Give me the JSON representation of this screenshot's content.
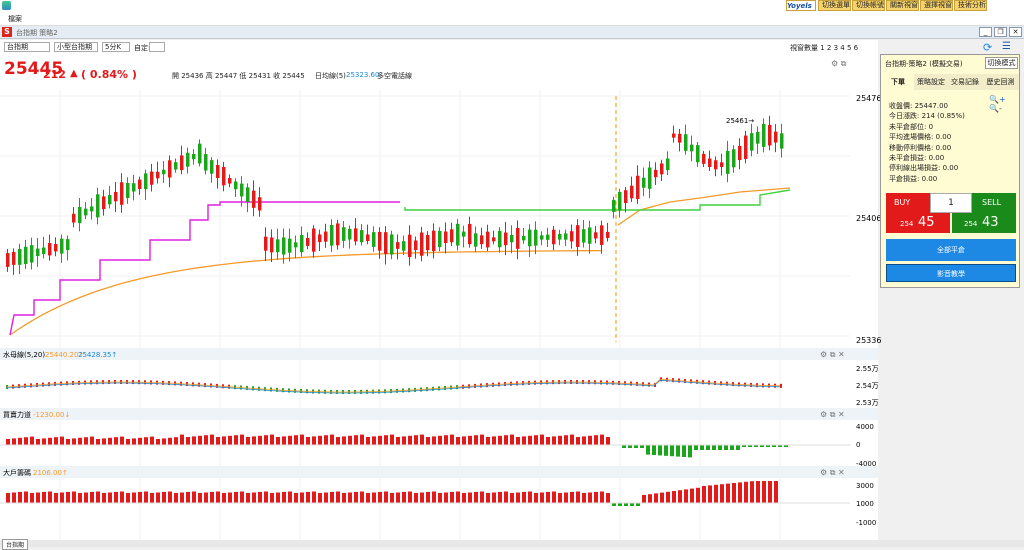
{
  "menu": {
    "file": "檔案"
  },
  "top_buttons": [
    "切換選單",
    "切換帳號",
    "關新視窗",
    "選擇視窗",
    "技術分析"
  ],
  "brand": "Yoyels",
  "window": {
    "title": "台指期 策略2"
  },
  "toolbar": {
    "product": "台指期",
    "product2": "小型台指期",
    "period": "5分K",
    "custom_label": "自定:",
    "view_count_label": "視窗數量 1 2 3 4 5 6"
  },
  "quote": {
    "price": "25445",
    "change": "212",
    "arrow": "▲",
    "pct": "( 0.84% )",
    "ohlc": "開 25436 高 25447 低 25431 收 25445",
    "ma_label": "日均線(5)",
    "ma_value": "25323.60",
    "ma_desc": "多空電話線"
  },
  "price_axis": {
    "top": "25476",
    "mid": "25406",
    "bottom": "25336",
    "peak_label": "25461→"
  },
  "indicators": [
    {
      "name": "水母線(5,20)",
      "v1": "25440.20↑",
      "v2": "25428.35↑",
      "ticks": [
        "2.55万",
        "2.54万",
        "2.53万"
      ]
    },
    {
      "name": "買賣力道",
      "v1": "-1230.00↓",
      "ticks": [
        "4000",
        "0",
        "-4000"
      ]
    },
    {
      "name": "大戶籌碼",
      "v1": "2106.00↑",
      "ticks": [
        "3000",
        "1000",
        "-1000"
      ]
    }
  ],
  "panel": {
    "title": "台指期-策略2 (模擬交易)",
    "mode_btn": "切換模式",
    "tabs": [
      "下單",
      "策略設定",
      "交易記錄",
      "歷史回測"
    ],
    "info": [
      "收盤價: 25447.00",
      "今日漲跌: 214 (0.85%)",
      "未平倉部位: 0",
      "平均進場價格: 0.00",
      "移動停利價格: 0.00",
      "未平倉損益: 0.00",
      "停利線出場損益: 0.00",
      "平倉損益: 0.00"
    ],
    "buy": "BUY",
    "sell": "SELL",
    "qty": "1",
    "bid_small": "254",
    "bid_big": "45",
    "ask_small": "254",
    "ask_big": "43",
    "close_all": "全部平倉",
    "video": "影音教學"
  },
  "bottom_tab": "台指期",
  "colors": {
    "up": "#e21a1a",
    "down": "#1aa51a",
    "magenta": "#e020e0",
    "orange": "#f39a2a",
    "green_line": "#3ed23e",
    "blue_btn": "#1e88e5"
  }
}
